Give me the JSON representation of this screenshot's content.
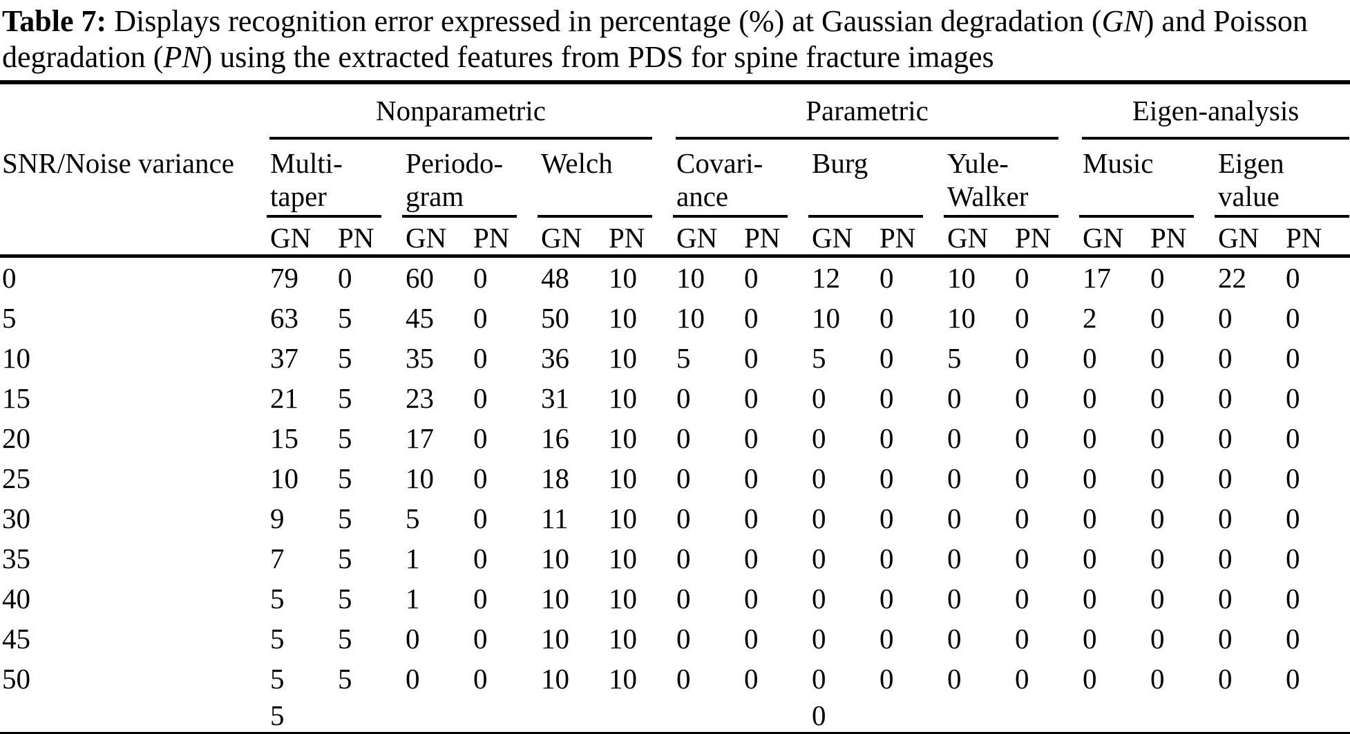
{
  "caption": {
    "label": "Table 7:",
    "part1": " Displays recognition error expressed in percentage (%) at Gaussian degradation (",
    "gn_italic": "GN",
    "part2": ") and Poisson degradation (",
    "pn_italic": "PN",
    "part3": ") using the extracted features from PDS for spine fracture images"
  },
  "table": {
    "row_header": "SNR/Noise variance",
    "groups": [
      {
        "label": "Nonparametric",
        "methods": [
          "Multi-\ntaper",
          "Periodo-\ngram",
          "Welch"
        ]
      },
      {
        "label": "Parametric",
        "methods": [
          "Covari-\nance",
          "Burg",
          "Yule-\nWalker"
        ]
      },
      {
        "label": "Eigen-analysis",
        "methods": [
          "Music",
          "Eigen\nvalue"
        ]
      }
    ],
    "sub_headers": [
      "GN",
      "PN"
    ],
    "rows": [
      {
        "snr": "0",
        "values": [
          "79",
          "0",
          "60",
          "0",
          "48",
          "10",
          "10",
          "0",
          "12",
          "0",
          "10",
          "0",
          "17",
          "0",
          "22",
          "0"
        ]
      },
      {
        "snr": "5",
        "values": [
          "63",
          "5",
          "45",
          "0",
          "50",
          "10",
          "10",
          "0",
          "10",
          "0",
          "10",
          "0",
          "2",
          "0",
          "0",
          "0"
        ]
      },
      {
        "snr": "10",
        "values": [
          "37",
          "5",
          "35",
          "0",
          "36",
          "10",
          "5",
          "0",
          "5",
          "0",
          "5",
          "0",
          "0",
          "0",
          "0",
          "0"
        ]
      },
      {
        "snr": "15",
        "values": [
          "21",
          "5",
          "23",
          "0",
          "31",
          "10",
          "0",
          "0",
          "0",
          "0",
          "0",
          "0",
          "0",
          "0",
          "0",
          "0"
        ]
      },
      {
        "snr": "20",
        "values": [
          "15",
          "5",
          "17",
          "0",
          "16",
          "10",
          "0",
          "0",
          "0",
          "0",
          "0",
          "0",
          "0",
          "0",
          "0",
          "0"
        ]
      },
      {
        "snr": "25",
        "values": [
          "10",
          "5",
          "10",
          "0",
          "18",
          "10",
          "0",
          "0",
          "0",
          "0",
          "0",
          "0",
          "0",
          "0",
          "0",
          "0"
        ]
      },
      {
        "snr": "30",
        "values": [
          "9",
          "5",
          "5",
          "0",
          "11",
          "10",
          "0",
          "0",
          "0",
          "0",
          "0",
          "0",
          "0",
          "0",
          "0",
          "0"
        ]
      },
      {
        "snr": "35",
        "values": [
          "7",
          "5",
          "1",
          "0",
          "10",
          "10",
          "0",
          "0",
          "0",
          "0",
          "0",
          "0",
          "0",
          "0",
          "0",
          "0"
        ]
      },
      {
        "snr": "40",
        "values": [
          "5",
          "5",
          "1",
          "0",
          "10",
          "10",
          "0",
          "0",
          "0",
          "0",
          "0",
          "0",
          "0",
          "0",
          "0",
          "0"
        ]
      },
      {
        "snr": "45",
        "values": [
          "5",
          "5",
          "0",
          "0",
          "10",
          "10",
          "0",
          "0",
          "0",
          "0",
          "0",
          "0",
          "0",
          "0",
          "0",
          "0"
        ]
      },
      {
        "snr": "50",
        "values": [
          "5",
          "5",
          "0",
          "0",
          "10",
          "10",
          "0",
          "0",
          "0",
          "0",
          "0",
          "0",
          "0",
          "0",
          "0",
          "0"
        ]
      }
    ],
    "extra_row": {
      "snr": "",
      "values": [
        "5",
        "",
        "",
        "",
        "",
        "",
        "",
        "",
        "0",
        "",
        "",
        "",
        "",
        "",
        "",
        ""
      ]
    }
  }
}
